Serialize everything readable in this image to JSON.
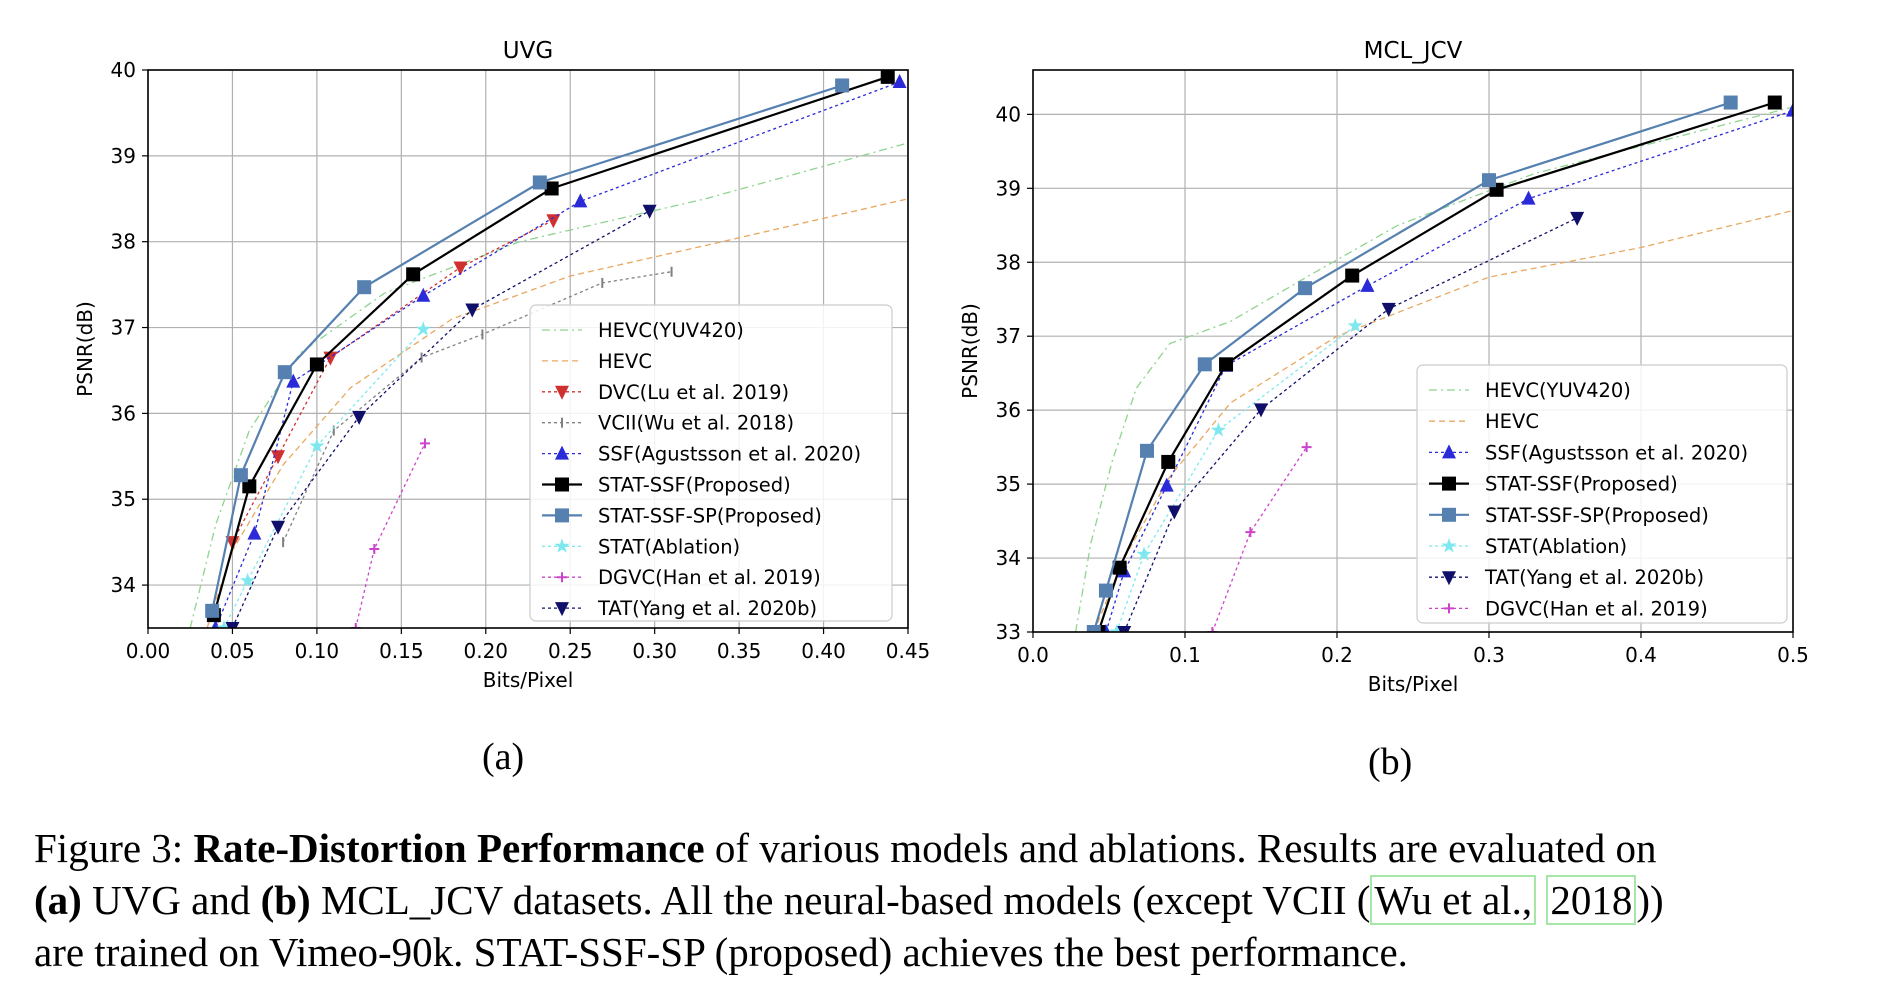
{
  "panels": {
    "a": "(a)",
    "b": "(b)"
  },
  "caption": {
    "prefix": "Figure 3: ",
    "bold1": "Rate-Distortion Performance",
    "text1": " of various models and ablations. Results are evaluated on",
    "bold2": "(a)",
    "text2": " UVG and ",
    "bold3": "(b)",
    "text3": " MCL_JCV datasets.  All the neural-based models (except VCII (",
    "cite1": "Wu et al.,",
    "cite_sep": " ",
    "cite2": "2018",
    "text4": "))",
    "text5": "are trained on Vimeo-90k. STAT-SSF-SP (proposed) achieves the best performance."
  },
  "chart_data": [
    {
      "type": "line",
      "title": "UVG",
      "xlabel": "Bits/Pixel",
      "ylabel": "PSNR(dB)",
      "xlim": [
        0.0,
        0.45
      ],
      "ylim": [
        33.5,
        40.0
      ],
      "xticks": [
        "0.00",
        "0.05",
        "0.10",
        "0.15",
        "0.20",
        "0.25",
        "0.30",
        "0.35",
        "0.40",
        "0.45"
      ],
      "yticks": [
        "34",
        "35",
        "36",
        "37",
        "38",
        "39",
        "40"
      ],
      "grid": true,
      "legend_position": "lower-right",
      "series": [
        {
          "name": "HEVC(YUV420)",
          "color": "#8fd48f",
          "dash": "8,4,2,4",
          "marker": "none",
          "x": [
            0.025,
            0.04,
            0.06,
            0.09,
            0.14,
            0.22,
            0.33,
            0.45
          ],
          "y": [
            33.5,
            34.7,
            35.8,
            36.7,
            37.4,
            38.0,
            38.5,
            39.15
          ]
        },
        {
          "name": "HEVC",
          "color": "#e8a860",
          "dash": "6,4",
          "marker": "none",
          "x": [
            0.035,
            0.05,
            0.08,
            0.12,
            0.18,
            0.25,
            0.34,
            0.45
          ],
          "y": [
            33.5,
            34.4,
            35.4,
            36.3,
            37.1,
            37.6,
            38.0,
            38.5
          ]
        },
        {
          "name": "DVC(Lu et al. 2019)",
          "color": "#d03030",
          "dash": "3,3",
          "marker": "tri_down",
          "x": [
            0.05,
            0.077,
            0.108,
            0.185,
            0.24
          ],
          "y": [
            34.5,
            35.5,
            36.65,
            37.7,
            38.25
          ]
        },
        {
          "name": "VCII(Wu et al. 2018)",
          "color": "#808080",
          "dash": "3,3",
          "marker": "vline",
          "x": [
            0.08,
            0.11,
            0.162,
            0.198,
            0.269,
            0.31
          ],
          "y": [
            34.5,
            35.8,
            36.65,
            36.92,
            37.52,
            37.65
          ]
        },
        {
          "name": "SSF(Agustsson et al. 2020)",
          "color": "#2a2ad8",
          "dash": "3,3",
          "marker": "triangle",
          "x": [
            0.04,
            0.063,
            0.086,
            0.163,
            0.256,
            0.445
          ],
          "y": [
            33.5,
            34.6,
            36.37,
            37.37,
            38.47,
            39.86
          ]
        },
        {
          "name": "STAT-SSF(Proposed)",
          "color": "#000000",
          "dash": "",
          "marker": "square",
          "x": [
            0.039,
            0.06,
            0.1,
            0.157,
            0.239,
            0.438
          ],
          "y": [
            33.65,
            35.15,
            36.57,
            37.62,
            38.62,
            39.92
          ]
        },
        {
          "name": "STAT-SSF-SP(Proposed)",
          "color": "#5580b0",
          "dash": "",
          "marker": "square",
          "x": [
            0.038,
            0.055,
            0.081,
            0.128,
            0.232,
            0.411
          ],
          "y": [
            33.7,
            35.28,
            36.48,
            37.47,
            38.69,
            39.82
          ]
        },
        {
          "name": "STAT(Ablation)",
          "color": "#7fe8ee",
          "dash": "3,3",
          "marker": "star",
          "x": [
            0.045,
            0.059,
            0.1,
            0.163
          ],
          "y": [
            33.5,
            34.05,
            35.62,
            36.98
          ]
        },
        {
          "name": "DGVC(Han et al. 2019)",
          "color": "#cc44cc",
          "dash": "3,3",
          "marker": "plus",
          "x": [
            0.123,
            0.134,
            0.164
          ],
          "y": [
            33.5,
            34.42,
            35.65
          ]
        },
        {
          "name": "TAT(Yang et al. 2020b)",
          "color": "#10106a",
          "dash": "3,3",
          "marker": "tri_down",
          "x": [
            0.05,
            0.077,
            0.125,
            0.192,
            0.297
          ],
          "y": [
            33.5,
            34.68,
            35.96,
            37.21,
            38.36
          ]
        }
      ]
    },
    {
      "type": "line",
      "title": "MCL_JCV",
      "xlabel": "Bits/Pixel",
      "ylabel": "PSNR(dB)",
      "xlim": [
        0.0,
        0.5
      ],
      "ylim": [
        33.0,
        40.6
      ],
      "xticks": [
        "0.0",
        "0.1",
        "0.2",
        "0.3",
        "0.4",
        "0.5"
      ],
      "yticks": [
        "33",
        "34",
        "35",
        "36",
        "37",
        "38",
        "39",
        "40"
      ],
      "grid": true,
      "legend_position": "lower-right",
      "series": [
        {
          "name": "HEVC(YUV420)",
          "color": "#8fd48f",
          "dash": "8,4,2,4",
          "marker": "none",
          "x": [
            0.028,
            0.038,
            0.052,
            0.068,
            0.09,
            0.13,
            0.18,
            0.24,
            0.33,
            0.5
          ],
          "y": [
            33.0,
            34.2,
            35.3,
            36.3,
            36.9,
            37.2,
            37.8,
            38.5,
            39.2,
            40.1
          ]
        },
        {
          "name": "HEVC",
          "color": "#e8a860",
          "dash": "6,4",
          "marker": "none",
          "x": [
            0.04,
            0.06,
            0.09,
            0.13,
            0.2,
            0.3,
            0.4,
            0.5
          ],
          "y": [
            33.0,
            34.0,
            35.1,
            36.1,
            37.0,
            37.8,
            38.2,
            38.7
          ]
        },
        {
          "name": "SSF(Agustsson et al. 2020)",
          "color": "#2a2ad8",
          "dash": "3,3",
          "marker": "triangle",
          "x": [
            0.048,
            0.06,
            0.088,
            0.127,
            0.22,
            0.326,
            0.5
          ],
          "y": [
            33.0,
            33.82,
            34.98,
            36.6,
            37.68,
            38.86,
            40.05
          ]
        },
        {
          "name": "STAT-SSF(Proposed)",
          "color": "#000000",
          "dash": "",
          "marker": "square",
          "x": [
            0.043,
            0.057,
            0.089,
            0.127,
            0.21,
            0.305,
            0.488
          ],
          "y": [
            33.0,
            33.87,
            35.3,
            36.62,
            37.82,
            38.98,
            40.16
          ]
        },
        {
          "name": "STAT-SSF-SP(Proposed)",
          "color": "#5580b0",
          "dash": "",
          "marker": "square",
          "x": [
            0.04,
            0.048,
            0.075,
            0.113,
            0.179,
            0.3,
            0.459
          ],
          "y": [
            33.0,
            33.56,
            35.45,
            36.62,
            37.65,
            39.11,
            40.16
          ]
        },
        {
          "name": "STAT(Ablation)",
          "color": "#7fe8ee",
          "dash": "3,3",
          "marker": "star",
          "x": [
            0.055,
            0.073,
            0.122,
            0.212
          ],
          "y": [
            33.0,
            34.05,
            35.73,
            37.14
          ]
        },
        {
          "name": "TAT(Yang et al. 2020b)",
          "color": "#10106a",
          "dash": "3,3",
          "marker": "tri_down",
          "x": [
            0.06,
            0.093,
            0.15,
            0.234,
            0.358
          ],
          "y": [
            33.0,
            34.63,
            36.01,
            37.37,
            38.6
          ]
        },
        {
          "name": "DGVC(Han et al. 2019)",
          "color": "#cc44cc",
          "dash": "3,3",
          "marker": "plus",
          "x": [
            0.118,
            0.143,
            0.18
          ],
          "y": [
            33.0,
            34.35,
            35.5
          ]
        }
      ]
    }
  ]
}
